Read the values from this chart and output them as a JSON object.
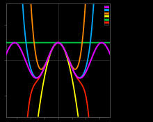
{
  "title": "",
  "xlim": [
    -7.5,
    7.5
  ],
  "ylim": [
    -3.2,
    3.2
  ],
  "clip_val": 3.2,
  "background_color": "#000000",
  "figsize": [
    2.2,
    1.76
  ],
  "dpi": 100,
  "series": [
    {
      "n": 0,
      "color": "#00cc44",
      "lw": 1.3,
      "zorder": 4
    },
    {
      "n": 1,
      "color": "#ffff00",
      "lw": 1.3,
      "zorder": 5
    },
    {
      "n": 2,
      "color": "#ff8800",
      "lw": 1.3,
      "zorder": 6
    },
    {
      "n": 3,
      "color": "#ff2200",
      "lw": 1.3,
      "zorder": 7
    },
    {
      "n": 4,
      "color": "#00aaff",
      "lw": 1.3,
      "zorder": 8
    }
  ],
  "cos_color": "#dd00ff",
  "cos_lw": 1.5,
  "cos_zorder": 10,
  "legend_colors": [
    "#dd00ff",
    "#00aaff",
    "#ff8800",
    "#ffff00",
    "#00cc44",
    "#ff2200"
  ],
  "legend_lw": [
    2.0,
    2.0,
    2.0,
    2.0,
    2.0,
    2.0
  ],
  "spine_color": "#555555",
  "tick_color": "#555555"
}
